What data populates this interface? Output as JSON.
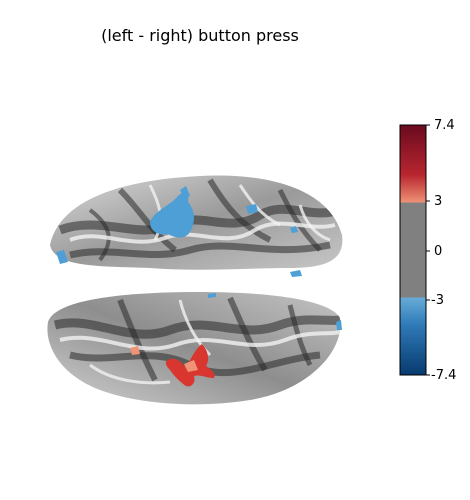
{
  "title": "(left - right) button press",
  "colorbar": {
    "ticks": [
      {
        "label": "7.4",
        "value": 7.4
      },
      {
        "label": "3",
        "value": 3
      },
      {
        "label": "0",
        "value": 0
      },
      {
        "label": "-3",
        "value": -3
      },
      {
        "label": "-7.4",
        "value": -7.4
      }
    ],
    "vmin": -7.4,
    "vmax": 7.4,
    "threshold": 3,
    "colors": {
      "max": "#6a0a1f",
      "pos_threshold": "#ef9276",
      "mid": "#808080",
      "neg_threshold": "#67acd8",
      "min": "#073a6e"
    }
  },
  "surface": {
    "hemispheres": [
      "top",
      "bottom"
    ],
    "negative_cluster_color": "#4d9fd6",
    "positive_cluster_color": "#d8362e"
  }
}
